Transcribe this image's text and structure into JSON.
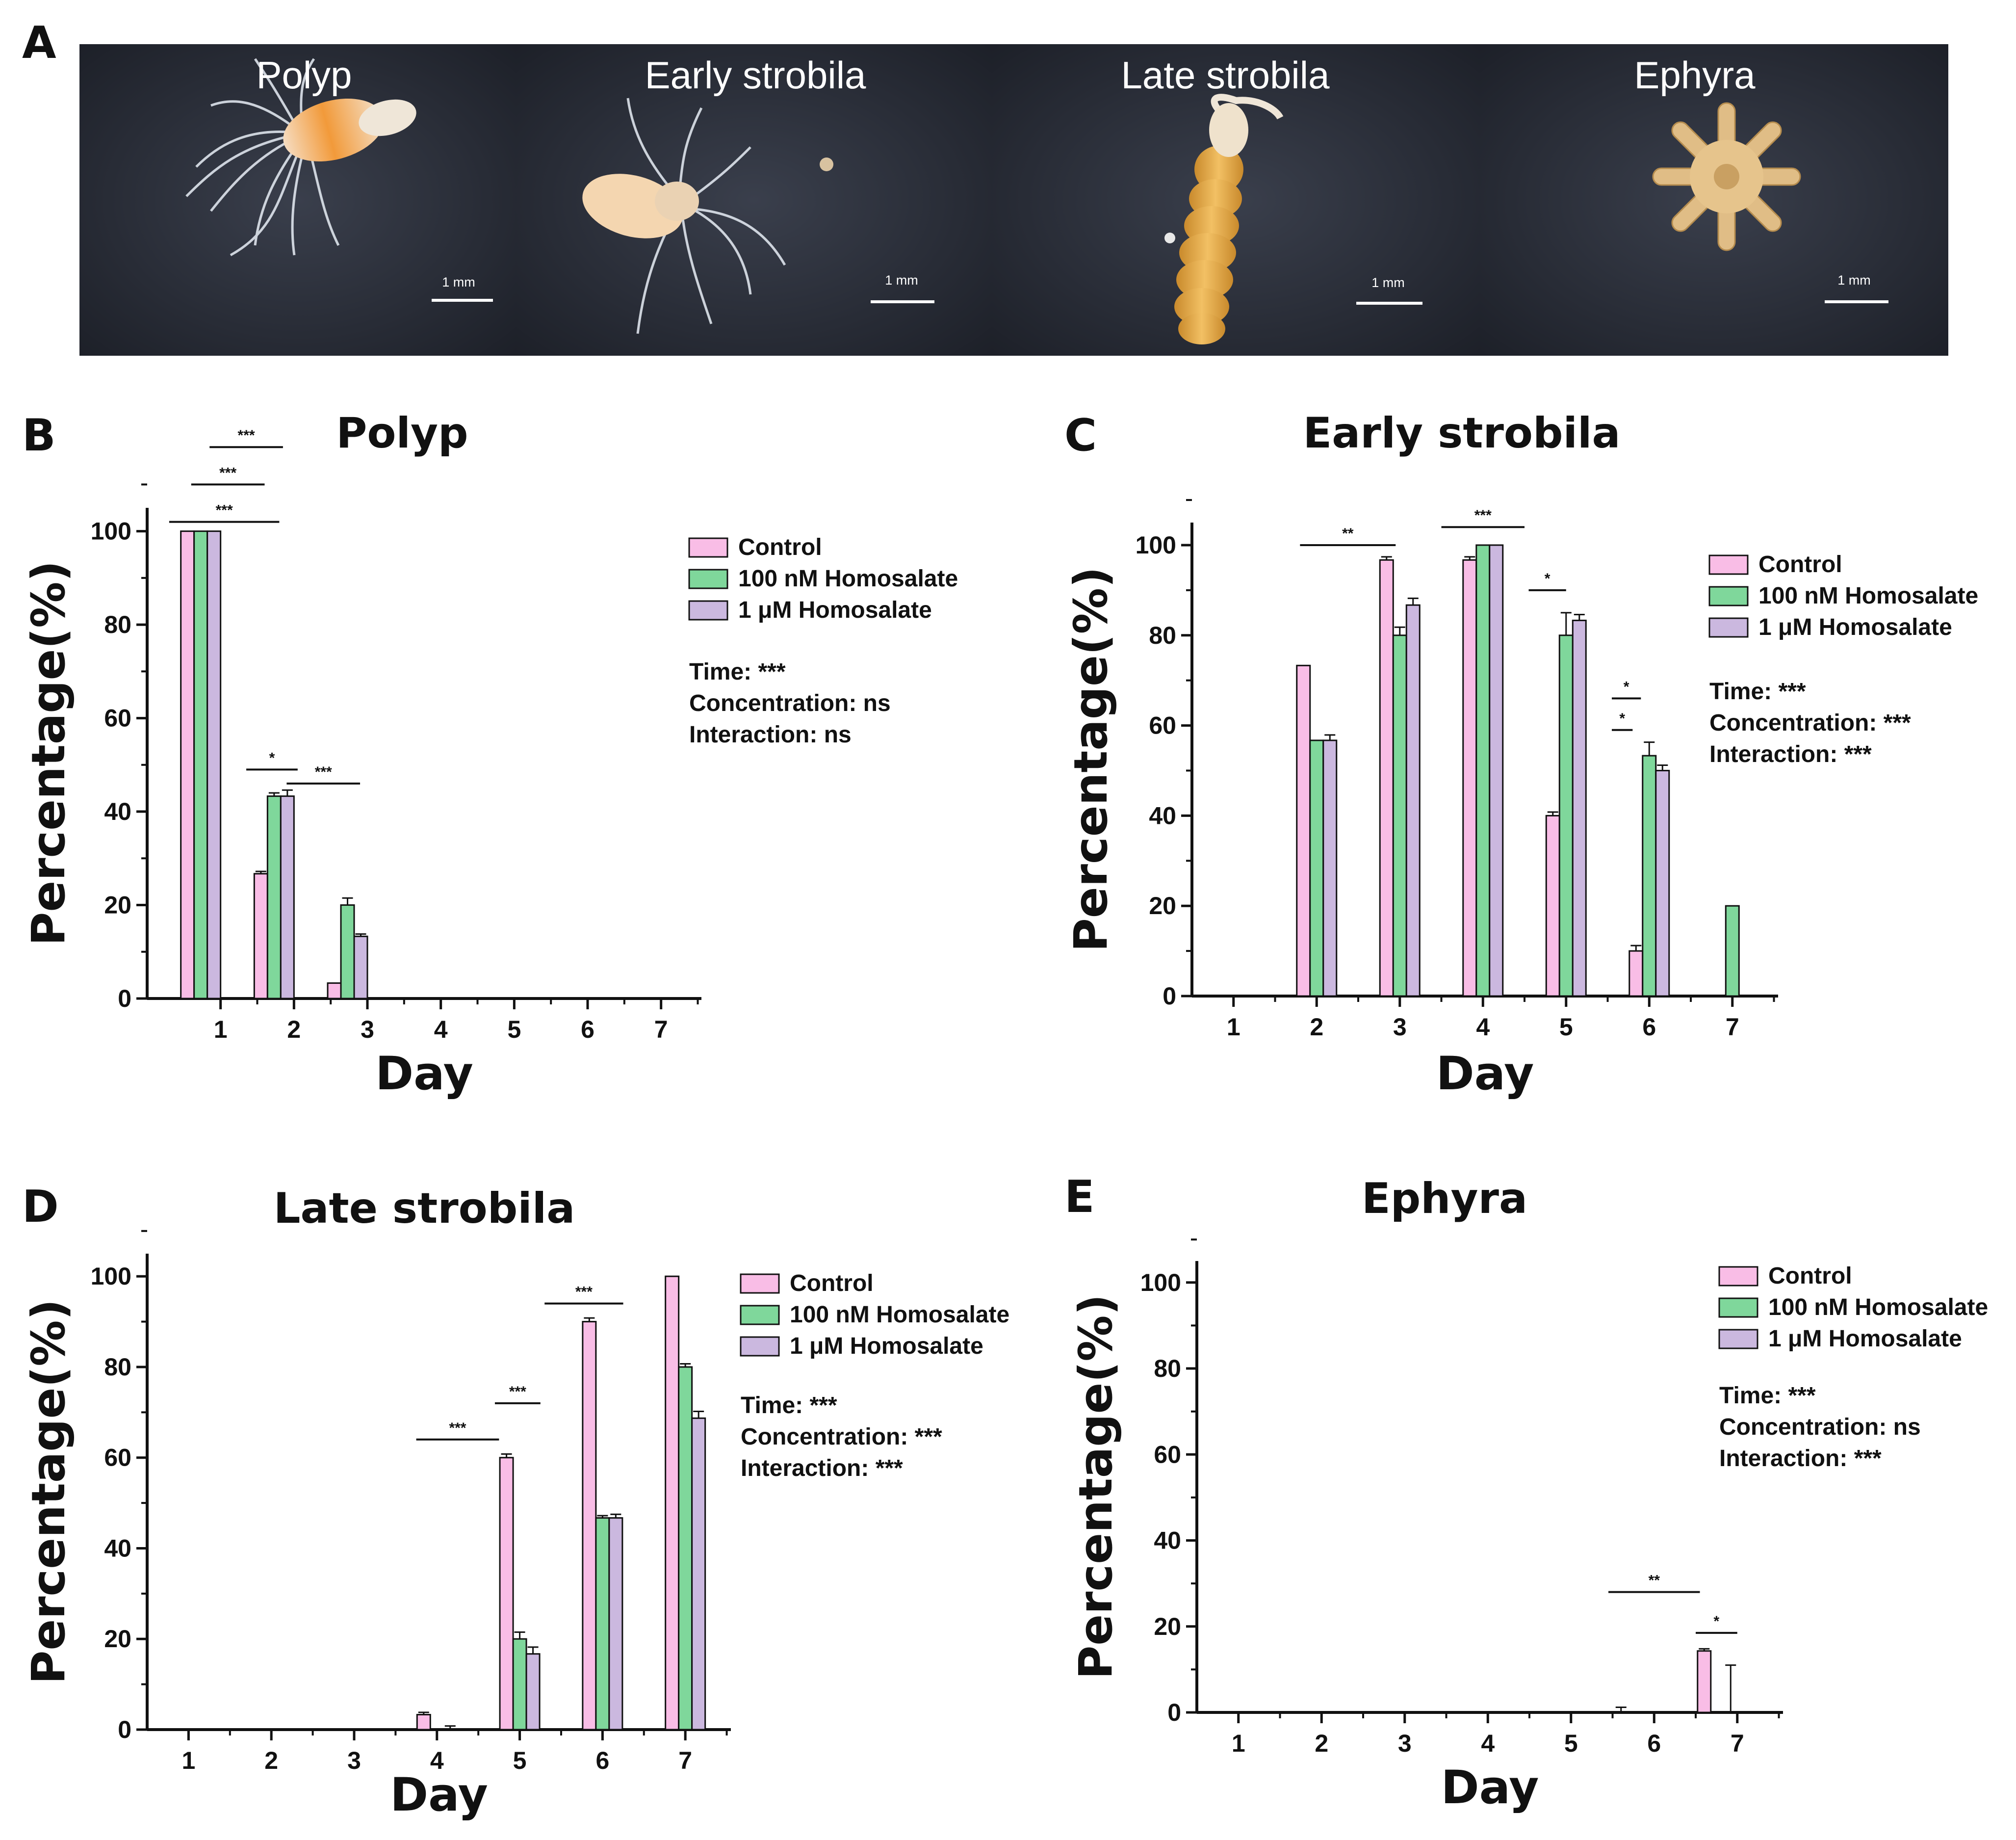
{
  "panel_a": {
    "letter": "A",
    "photos": [
      {
        "label": "Polyp",
        "scale": "1 mm"
      },
      {
        "label": "Early strobila",
        "scale": "1 mm"
      },
      {
        "label": "Late strobila",
        "scale": "1 mm"
      },
      {
        "label": "Ephyra",
        "scale": "1 mm"
      }
    ]
  },
  "chart_data": [
    {
      "panel": "B",
      "type": "bar",
      "title": "Polyp",
      "xlabel": "Day",
      "ylabel": "Percentage(%)",
      "ylim": [
        0,
        105
      ],
      "yticks": [
        0,
        20,
        40,
        60,
        80,
        100
      ],
      "categories": [
        "1",
        "2",
        "3",
        "4",
        "5",
        "6",
        "7"
      ],
      "group_positions": "before_tick",
      "series": [
        {
          "name": "Control",
          "color": "#f9bde6",
          "values": [
            100,
            26.7,
            3.3,
            0,
            0,
            0,
            0
          ],
          "errors": [
            0,
            0.5,
            0,
            0,
            0,
            0,
            0
          ]
        },
        {
          "name": "100 nM Homosalate",
          "color": "#7fd79b",
          "values": [
            100,
            43.3,
            20,
            0,
            0,
            0,
            0
          ],
          "errors": [
            0,
            0.7,
            1.5,
            0,
            0,
            0,
            0
          ]
        },
        {
          "name": "1 μM Homosalate",
          "color": "#cbb8df",
          "values": [
            100,
            43.3,
            13.3,
            0,
            0,
            0,
            0
          ],
          "errors": [
            0,
            1.3,
            0.5,
            0,
            0,
            0,
            0
          ]
        }
      ],
      "significance": [
        {
          "label": "***",
          "x1": 0.3,
          "x2": 1.8,
          "y": 102
        },
        {
          "label": "***",
          "x1": 0.6,
          "x2": 1.6,
          "y": 110
        },
        {
          "label": "***",
          "x1": 0.85,
          "x2": 1.85,
          "y": 118
        },
        {
          "label": "*",
          "x1": 1.35,
          "x2": 2.05,
          "y": 49
        },
        {
          "label": "***",
          "x1": 1.9,
          "x2": 2.9,
          "y": 46
        }
      ],
      "stats": [
        "Time: ***",
        "Concentration: ns",
        "Interaction: ns"
      ]
    },
    {
      "panel": "C",
      "type": "bar",
      "title": "Early strobila",
      "xlabel": "Day",
      "ylabel": "Percentage(%)",
      "ylim": [
        0,
        105
      ],
      "yticks": [
        0,
        20,
        40,
        60,
        80,
        100
      ],
      "categories": [
        "1",
        "2",
        "3",
        "4",
        "5",
        "6",
        "7"
      ],
      "group_positions": "centered",
      "series": [
        {
          "name": "Control",
          "color": "#f9bde6",
          "values": [
            0,
            73.3,
            96.7,
            96.7,
            40,
            10,
            0
          ],
          "errors": [
            0,
            0,
            0.7,
            0.7,
            0.8,
            1.2,
            0
          ]
        },
        {
          "name": "100 nM Homosalate",
          "color": "#7fd79b",
          "values": [
            0,
            56.7,
            80,
            100,
            80,
            53.3,
            20
          ],
          "errors": [
            0,
            0,
            1.8,
            0,
            5,
            3,
            0
          ]
        },
        {
          "name": "1 μM Homosalate",
          "color": "#cbb8df",
          "values": [
            0,
            56.7,
            86.7,
            100,
            83.3,
            50,
            0
          ],
          "errors": [
            0,
            1.2,
            1.5,
            0,
            1.3,
            1.2,
            0
          ]
        }
      ],
      "significance": [
        {
          "label": "**",
          "x1": 1.8,
          "x2": 2.95,
          "y": 100
        },
        {
          "label": "***",
          "x1": 3.5,
          "x2": 4.5,
          "y": 104
        },
        {
          "label": "*",
          "x1": 4.55,
          "x2": 5.0,
          "y": 90
        },
        {
          "label": "*",
          "x1": 5.55,
          "x2": 5.9,
          "y": 66
        },
        {
          "label": "*",
          "x1": 5.55,
          "x2": 5.8,
          "y": 59
        }
      ],
      "stats": [
        "Time: ***",
        "Concentration: ***",
        "Interaction: ***"
      ]
    },
    {
      "panel": "D",
      "type": "bar",
      "title": "Late strobila",
      "xlabel": "Day",
      "ylabel": "Percentage(%)",
      "ylim": [
        0,
        105
      ],
      "yticks": [
        0,
        20,
        40,
        60,
        80,
        100
      ],
      "categories": [
        "1",
        "2",
        "3",
        "4",
        "5",
        "6",
        "7"
      ],
      "group_positions": "centered",
      "series": [
        {
          "name": "Control",
          "color": "#f9bde6",
          "values": [
            0,
            0,
            0,
            3.3,
            60,
            90,
            100
          ],
          "errors": [
            0,
            0,
            0,
            0.5,
            0.8,
            0.8,
            0
          ]
        },
        {
          "name": "100 nM Homosalate",
          "color": "#7fd79b",
          "values": [
            0,
            0,
            0,
            0,
            20,
            46.7,
            80
          ],
          "errors": [
            0,
            0,
            0,
            0,
            1.5,
            0.5,
            0.7
          ]
        },
        {
          "name": "1 μM Homosalate",
          "color": "#cbb8df",
          "values": [
            0,
            0,
            0,
            0,
            16.7,
            46.7,
            68.7
          ],
          "errors": [
            0,
            0,
            0,
            0.8,
            1.5,
            0.8,
            1.5
          ]
        }
      ],
      "significance": [
        {
          "label": "***",
          "x1": 3.75,
          "x2": 4.75,
          "y": 64
        },
        {
          "label": "***",
          "x1": 4.7,
          "x2": 5.25,
          "y": 72
        },
        {
          "label": "***",
          "x1": 5.3,
          "x2": 6.25,
          "y": 94
        }
      ],
      "stats": [
        "Time: ***",
        "Concentration: ***",
        "Interaction: ***"
      ]
    },
    {
      "panel": "E",
      "type": "bar",
      "title": "Ephyra",
      "xlabel": "Day",
      "ylabel": "Percentage(%)",
      "ylim": [
        0,
        105
      ],
      "yticks": [
        0,
        20,
        40,
        60,
        80,
        100
      ],
      "categories": [
        "1",
        "2",
        "3",
        "4",
        "5",
        "6",
        "7"
      ],
      "group_positions": "before_tick",
      "series": [
        {
          "name": "Control",
          "color": "#f9bde6",
          "values": [
            0,
            0,
            0,
            0,
            0,
            0,
            14.3
          ],
          "errors": [
            0,
            0,
            0,
            0,
            0,
            1.2,
            0.5
          ]
        },
        {
          "name": "100 nM Homosalate",
          "color": "#7fd79b",
          "values": [
            0,
            0,
            0,
            0,
            0,
            0,
            0
          ],
          "errors": [
            0,
            0,
            0,
            0,
            0,
            0,
            0
          ]
        },
        {
          "name": "1 μM Homosalate",
          "color": "#cbb8df",
          "values": [
            0,
            0,
            0,
            0,
            0,
            0,
            0
          ],
          "errors": [
            0,
            0,
            0,
            0,
            0,
            0,
            11
          ]
        }
      ],
      "significance": [
        {
          "label": "**",
          "x1": 5.45,
          "x2": 6.55,
          "y": 28
        },
        {
          "label": "*",
          "x1": 6.5,
          "x2": 7.0,
          "y": 18.5
        }
      ],
      "stats": [
        "Time: ***",
        "Concentration: ns",
        "Interaction: ***"
      ]
    }
  ]
}
